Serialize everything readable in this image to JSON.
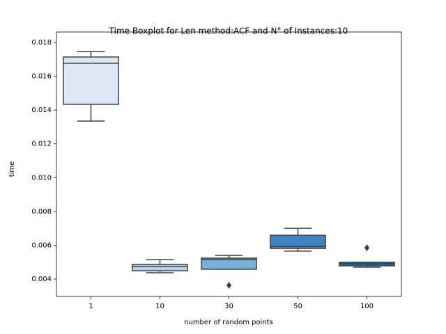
{
  "chart_data": {
    "type": "boxplot",
    "title": "Time Boxplot for Len method:ACF and N° of Instances:10",
    "x_label": "number of random points",
    "y_label": "time",
    "categories": [
      "1",
      "10",
      "30",
      "50",
      "100"
    ],
    "boxes": [
      {
        "min": 0.01335,
        "q1": 0.01434,
        "median": 0.01677,
        "q3": 0.01714,
        "max": 0.01746,
        "outliers": [],
        "color": "#dbe7f4"
      },
      {
        "min": 0.00437,
        "q1": 0.00449,
        "median": 0.00474,
        "q3": 0.00486,
        "max": 0.00515,
        "outliers": [],
        "color": "#b8d3ea"
      },
      {
        "min": 0.00458,
        "q1": 0.00458,
        "median": 0.00515,
        "q3": 0.00524,
        "max": 0.0054,
        "outliers": [
          0.00363
        ],
        "color": "#77b1d9"
      },
      {
        "min": 0.00565,
        "q1": 0.00581,
        "median": 0.00593,
        "q3": 0.00659,
        "max": 0.007,
        "outliers": [],
        "color": "#3d86c1"
      },
      {
        "min": 0.0047,
        "q1": 0.00478,
        "median": 0.0049,
        "q3": 0.00499,
        "max": 0.00499,
        "outliers": [
          0.00585
        ],
        "color": "#1f66ac"
      }
    ],
    "ylim": [
      0.00297,
      0.01862
    ],
    "yticks": [
      0.004,
      0.006,
      0.008,
      {
        "value": 0.01,
        "label": "0.010"
      },
      0.012,
      0.014,
      0.016,
      0.018
    ]
  }
}
